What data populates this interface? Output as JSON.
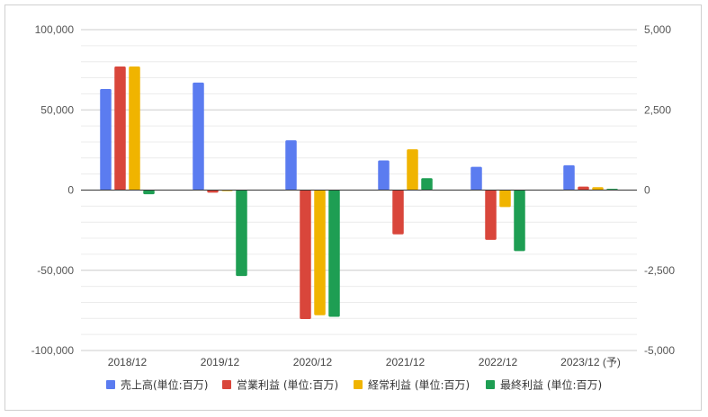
{
  "chart_data": {
    "type": "bar",
    "categories": [
      "2018/12",
      "2019/12",
      "2020/12",
      "2021/12",
      "2022/12",
      "2023/12 (予)"
    ],
    "y_left": {
      "ticks": [
        "100,000",
        "50,000",
        "0",
        "-50,000",
        "-100,000"
      ],
      "ylim": [
        -100000,
        100000
      ]
    },
    "y_right": {
      "ticks": [
        "5,000",
        "2,500",
        "0",
        "-2,500",
        "-5,000"
      ],
      "ylim": [
        -5000,
        5000
      ]
    },
    "grid": true,
    "legend": "bottom",
    "series": [
      {
        "name": "売上高(単位:百万)",
        "axis": "left",
        "color": "#5b7cf0",
        "values": [
          63000,
          67000,
          31000,
          18500,
          14500,
          15500
        ]
      },
      {
        "name": "営業利益 (単位:百万)",
        "axis": "right",
        "color": "#d9463b",
        "values": [
          3850,
          -80,
          -4020,
          -1380,
          -1550,
          110
        ]
      },
      {
        "name": "経常利益 (単位:百万)",
        "axis": "right",
        "color": "#f0b400",
        "values": [
          3850,
          -30,
          -3900,
          1270,
          -530,
          90
        ]
      },
      {
        "name": "最終利益 (単位:百万)",
        "axis": "right",
        "color": "#1e9e53",
        "values": [
          -130,
          -2680,
          -3950,
          370,
          -1900,
          40
        ]
      }
    ]
  }
}
